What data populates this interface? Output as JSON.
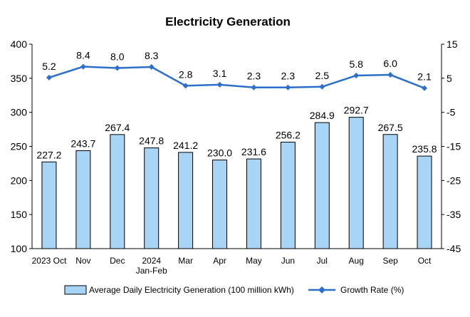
{
  "chart_data": {
    "type": "bar+line",
    "title": "Electricity Generation",
    "categories": [
      "2023 Oct",
      "Nov",
      "Dec",
      "2024\nJan-Feb",
      "Mar",
      "Apr",
      "May",
      "Jun",
      "Jul",
      "Aug",
      "Sep",
      "Oct"
    ],
    "series": [
      {
        "name": "Average Daily Electricity Generation (100 million kWh)",
        "type": "bar",
        "axis": "left",
        "color": "#a8d4f5",
        "values": [
          227.2,
          243.7,
          267.4,
          247.8,
          241.2,
          230.0,
          231.6,
          256.2,
          284.9,
          292.7,
          267.5,
          235.8
        ],
        "labels": [
          "227.2",
          "243.7",
          "267.4",
          "247.8",
          "241.2",
          "230.0",
          "231.6",
          "256.2",
          "284.9",
          "292.7",
          "267.5",
          "235.8"
        ]
      },
      {
        "name": "Growth Rate (%)",
        "type": "line",
        "axis": "right",
        "color": "#2e6fc9",
        "values": [
          5.2,
          8.4,
          8.0,
          8.3,
          2.8,
          3.1,
          2.3,
          2.3,
          2.5,
          5.8,
          6.0,
          2.1
        ],
        "labels": [
          "5.2",
          "8.4",
          "8.0",
          "8.3",
          "2.8",
          "3.1",
          "2.3",
          "2.3",
          "2.5",
          "5.8",
          "6.0",
          "2.1"
        ]
      }
    ],
    "ylim_left": [
      100,
      400
    ],
    "yticks_left": [
      100,
      150,
      200,
      250,
      300,
      350,
      400
    ],
    "ylim_right": [
      -45,
      15
    ],
    "yticks_right": [
      -45,
      -35,
      -25,
      -15,
      -5,
      5,
      15
    ],
    "grid": false,
    "legend_position": "bottom"
  }
}
